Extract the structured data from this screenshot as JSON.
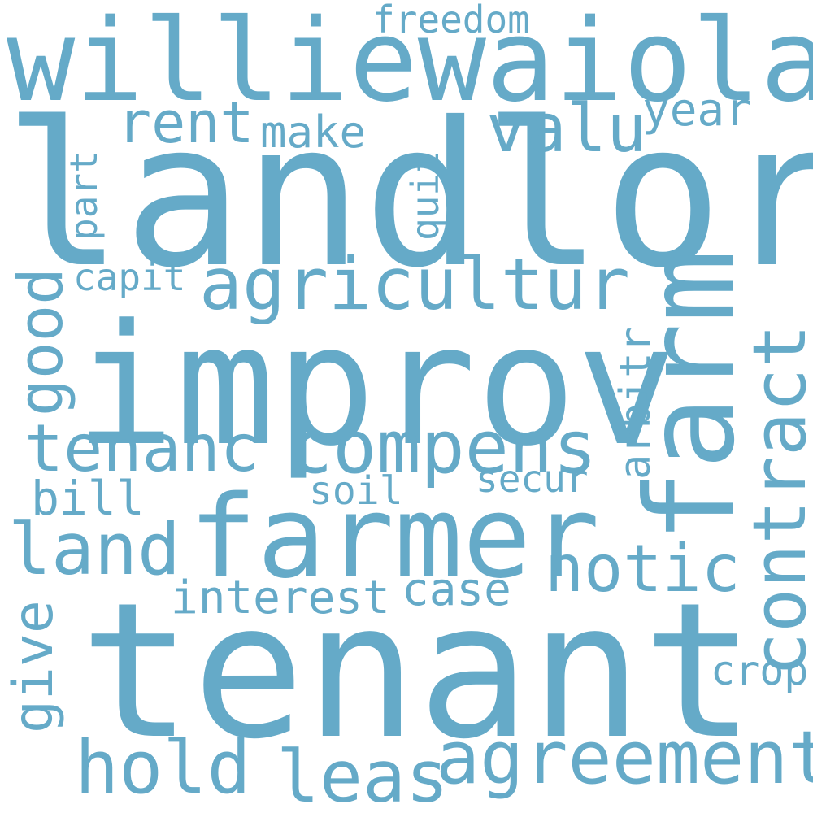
{
  "color": "#65aac8",
  "words": {
    "williewaiola": "williewaiola",
    "landlord": "landlord",
    "freedom": "freedom",
    "rent": "rent",
    "make": "make",
    "valu": "valu",
    "year": "year",
    "part": "part",
    "quit": "quit",
    "agricultur": "agricultur",
    "capit": "capit",
    "good": "good",
    "improv": "improv",
    "farm": "farm",
    "contract": "contract",
    "arbitr": "arbitr",
    "tenanc": "tenanc",
    "compens": "compens",
    "secur": "secur",
    "bill": "bill",
    "soil": "soil",
    "farmer": "farmer",
    "land": "land",
    "notic": "notic",
    "interest": "interest",
    "case": "case",
    "give": "give",
    "tenant": "tenant",
    "crop": "crop",
    "hold": "hold",
    "leas": "leas",
    "agreement": "agreement"
  }
}
